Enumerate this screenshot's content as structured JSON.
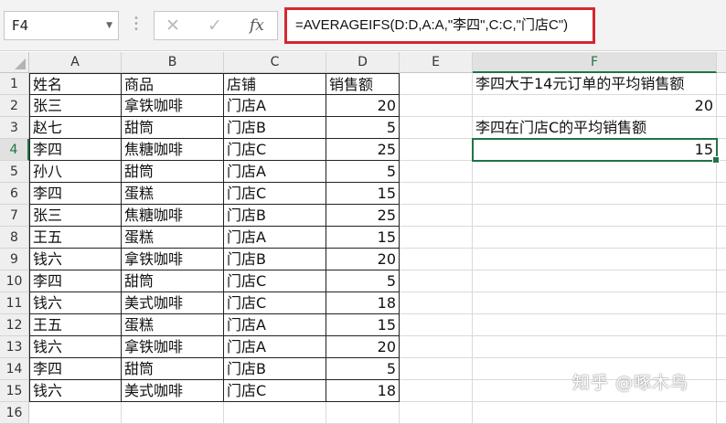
{
  "name_box": "F4",
  "formula_bar": {
    "cancel_icon": "✕",
    "enter_icon": "✓",
    "fx_label": "fx",
    "formula": "=AVERAGEIFS(D:D,A:A,\"李四\",C:C,\"门店C\")"
  },
  "columns": [
    "A",
    "B",
    "C",
    "D",
    "E",
    "F"
  ],
  "selected_cell": {
    "column": "F",
    "row": 4
  },
  "rows": [
    [
      "姓名",
      "商品",
      "店铺",
      "销售额"
    ],
    [
      "张三",
      "拿铁咖啡",
      "门店A",
      "20"
    ],
    [
      "赵七",
      "甜筒",
      "门店B",
      "5"
    ],
    [
      "李四",
      "焦糖咖啡",
      "门店C",
      "25"
    ],
    [
      "孙八",
      "甜筒",
      "门店A",
      "5"
    ],
    [
      "李四",
      "蛋糕",
      "门店C",
      "15"
    ],
    [
      "张三",
      "焦糖咖啡",
      "门店B",
      "25"
    ],
    [
      "王五",
      "蛋糕",
      "门店A",
      "15"
    ],
    [
      "钱六",
      "拿铁咖啡",
      "门店B",
      "20"
    ],
    [
      "李四",
      "甜筒",
      "门店C",
      "5"
    ],
    [
      "钱六",
      "美式咖啡",
      "门店C",
      "18"
    ],
    [
      "王五",
      "蛋糕",
      "门店A",
      "15"
    ],
    [
      "钱六",
      "拿铁咖啡",
      "门店A",
      "20"
    ],
    [
      "李四",
      "甜筒",
      "门店B",
      "5"
    ],
    [
      "钱六",
      "美式咖啡",
      "门店C",
      "18"
    ]
  ],
  "f_column": {
    "F1": "李四大于14元订单的平均销售额",
    "F2": "20",
    "F3": "李四在门店C的平均销售额",
    "F4": "15"
  },
  "watermark": "知乎 @啄木鸟",
  "colors": {
    "selection": "#217346",
    "formula_highlight": "#d4282f"
  }
}
